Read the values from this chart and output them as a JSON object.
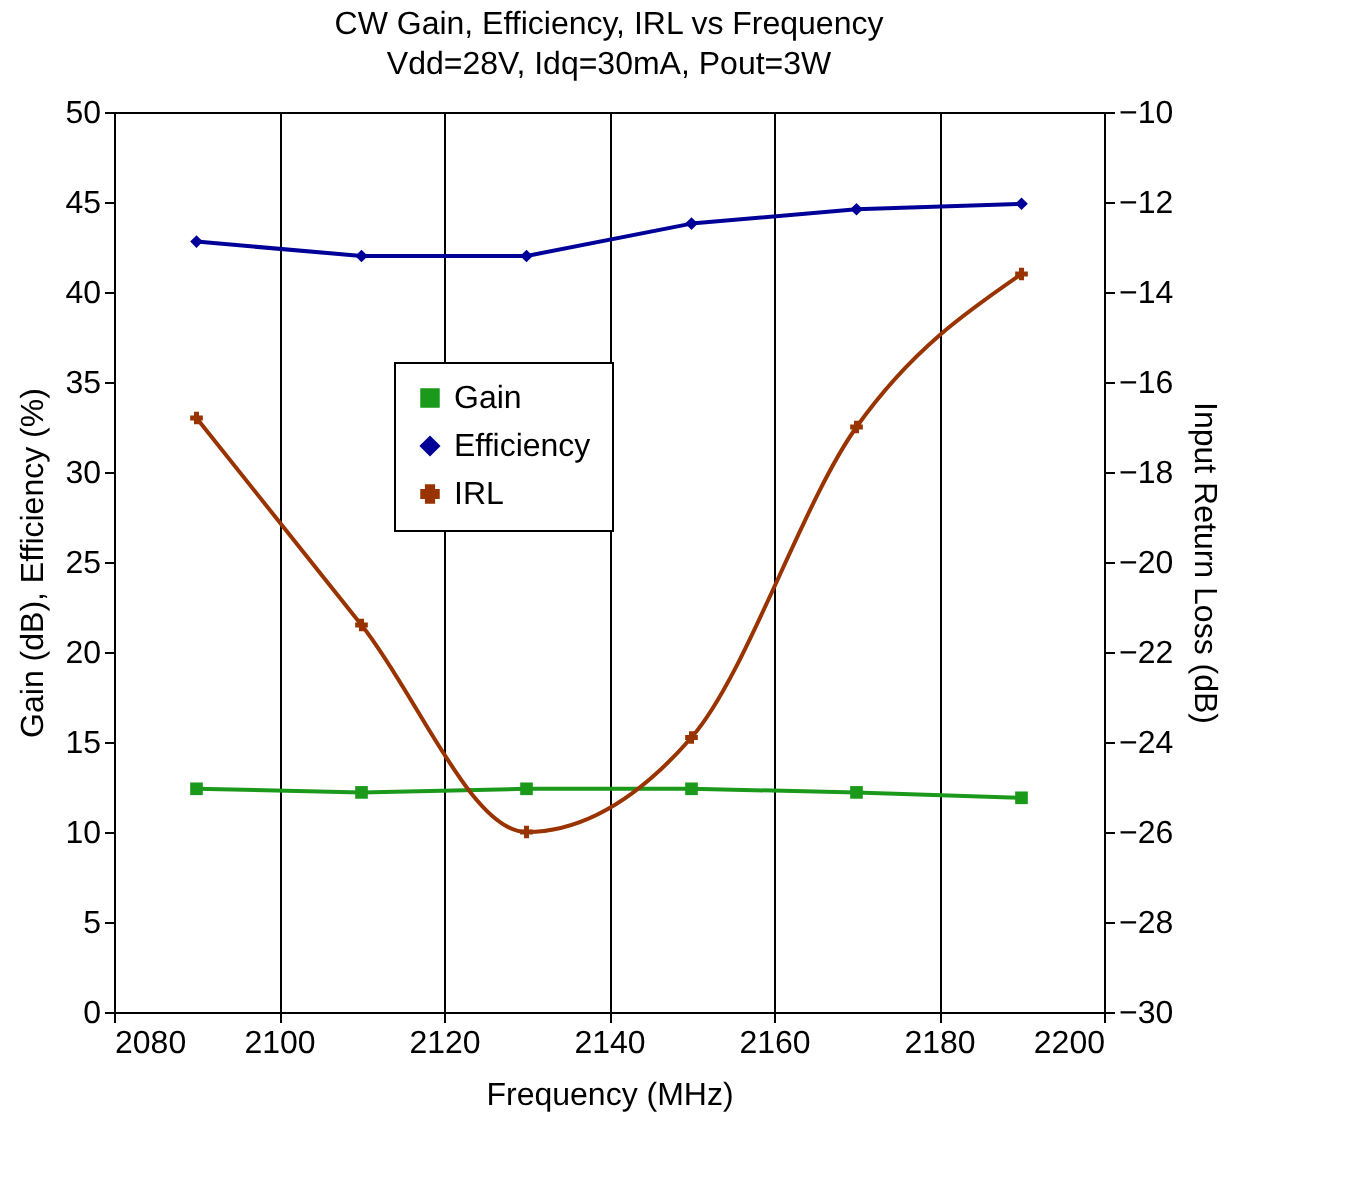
{
  "chart_data": {
    "type": "line",
    "title": "CW Gain, Efficiency, IRL vs Frequency",
    "subtitle": "Vdd=28V, Idq=30mA, Pout=3W",
    "xlabel": "Frequency (MHz)",
    "ylabel": "Gain (dB), Efficiency (%)",
    "y2label": "Input Return Loss (dB)",
    "x": [
      2090,
      2110,
      2130,
      2150,
      2170,
      2190
    ],
    "xlim": [
      2080,
      2200
    ],
    "xticks": [
      2080,
      2100,
      2120,
      2140,
      2160,
      2180,
      2200
    ],
    "ylim": [
      0,
      50
    ],
    "yticks": [
      0,
      5,
      10,
      15,
      20,
      25,
      30,
      35,
      40,
      45,
      50
    ],
    "y2lim": [
      -30,
      -10
    ],
    "y2ticks": [
      -30,
      -28,
      -26,
      -24,
      -22,
      -20,
      -18,
      -16,
      -14,
      -12,
      -10
    ],
    "grid": "x",
    "legend": "left",
    "line_style": "solid",
    "series": [
      {
        "name": "Gain",
        "color": "#1a991a",
        "marker": "square",
        "values": [
          12.4,
          12.2,
          12.4,
          12.4,
          12.2,
          11.9
        ]
      },
      {
        "name": "Efficiency",
        "color": "#000099",
        "marker": "diamond",
        "values": [
          42.8,
          42.0,
          42.0,
          43.8,
          44.6,
          44.9
        ]
      },
      {
        "name": "IRL",
        "color": "#993300",
        "marker": "cross",
        "axis": "y2",
        "values": [
          -16.8,
          -21.4,
          -26.0,
          -23.9,
          -17.0,
          -13.6
        ]
      }
    ]
  }
}
